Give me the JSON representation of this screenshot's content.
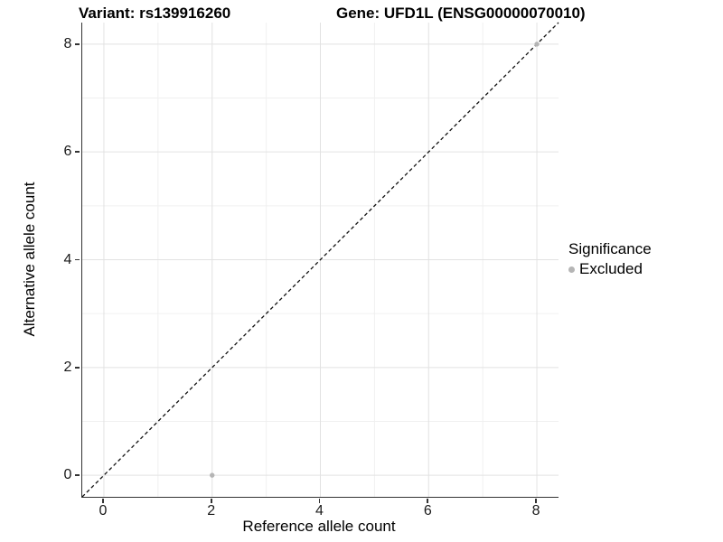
{
  "chart_data": {
    "type": "scatter",
    "title_left": "Variant: rs139916260",
    "title_right": "Gene: UFD1L (ENSG00000070010)",
    "xlabel": "Reference allele count",
    "ylabel": "Alternative allele count",
    "xlim": [
      -0.4,
      8.4
    ],
    "ylim": [
      -0.4,
      8.4
    ],
    "x_major_ticks": [
      0,
      2,
      4,
      6,
      8
    ],
    "x_tick_labels": [
      "0",
      "2",
      "4",
      "6",
      "8"
    ],
    "x_minor_ticks": [
      1,
      3,
      5,
      7
    ],
    "y_major_ticks": [
      0,
      2,
      4,
      6,
      8
    ],
    "y_tick_labels": [
      "0",
      "2",
      "4",
      "6",
      "8"
    ],
    "y_minor_ticks": [
      1,
      3,
      5,
      7
    ],
    "grid": true,
    "identity_line": {
      "type": "abline y=x",
      "style": "dashed",
      "color": "#111111"
    },
    "series": [
      {
        "name": "Excluded",
        "color": "#b5b5b5",
        "points": [
          [
            2,
            0
          ],
          [
            8,
            8
          ]
        ]
      }
    ],
    "legend": {
      "position": "right",
      "title": "Significance",
      "items": [
        {
          "label": "Excluded",
          "color": "#b5b5b5"
        }
      ]
    }
  },
  "colors": {
    "grid_major": "#e2e2e2",
    "grid_minor": "#f0f0f0",
    "axis_line": "#333333",
    "point_excluded": "#b5b5b5",
    "identity_line": "#111111",
    "background": "#ffffff"
  }
}
